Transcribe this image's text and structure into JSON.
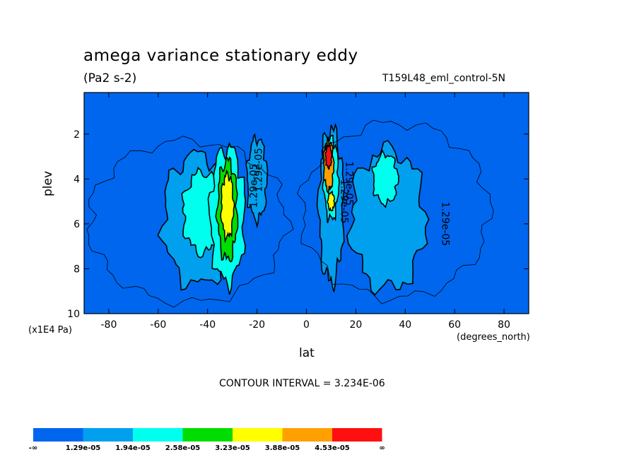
{
  "chart_data": {
    "type": "heatmap",
    "title": "amega variance stationary eddy",
    "units_label": "(Pa2 s-2)",
    "run_label": "T159L48_eml_control-5N",
    "xlabel": "lat",
    "xunits": "(degrees_north)",
    "ylabel": "plev",
    "yunits": "(x1E4 Pa)",
    "xlim": [
      -90,
      90
    ],
    "ylim": [
      10,
      0.15
    ],
    "xticks": [
      "-80",
      "-60",
      "-40",
      "-20",
      "0",
      "20",
      "40",
      "60",
      "80"
    ],
    "yticks": [
      "2",
      "4",
      "6",
      "8",
      "10"
    ],
    "contour_interval": "CONTOUR INTERVAL = 3.234E-06",
    "contour_labels": [
      "1.29e-05",
      "1.29e-05",
      "1.29e-05",
      "1.29e-05",
      "1.29e-05"
    ],
    "colorbar": {
      "labels": [
        "-∞",
        "1.29e-05",
        "1.94e-05",
        "2.58e-05",
        "3.23e-05",
        "3.88e-05",
        "4.53e-05",
        "∞"
      ],
      "colors": [
        "#0066ee",
        "#00a0ee",
        "#00ffee",
        "#00dd00",
        "#ffff00",
        "#ffa000",
        "#ff1010"
      ]
    },
    "blobs": [
      {
        "lat": -44,
        "lev": 5.8,
        "rlat": 14,
        "rlev": 2.9,
        "level": 1
      },
      {
        "lat": -42,
        "lev": 5.5,
        "rlat": 8,
        "rlev": 1.8,
        "level": 2
      },
      {
        "lat": -32,
        "lev": 5.6,
        "rlat": 7,
        "rlev": 3.0,
        "level": 2
      },
      {
        "lat": -32,
        "lev": 5.4,
        "rlat": 4,
        "rlev": 2.2,
        "level": 3
      },
      {
        "lat": -32,
        "lev": 5.2,
        "rlat": 2.5,
        "rlev": 1.4,
        "level": 4
      },
      {
        "lat": -20,
        "lev": 4.0,
        "rlat": 4,
        "rlev": 1.8,
        "level": 1
      },
      {
        "lat": 10,
        "lev": 5.2,
        "rlat": 5,
        "rlev": 3.4,
        "level": 1
      },
      {
        "lat": 10,
        "lev": 4.0,
        "rlat": 3,
        "rlev": 1.8,
        "level": 2
      },
      {
        "lat": 9,
        "lev": 3.4,
        "rlat": 2,
        "rlev": 1.1,
        "level": 5
      },
      {
        "lat": 9,
        "lev": 3.0,
        "rlat": 1.2,
        "rlev": 0.5,
        "level": 6
      },
      {
        "lat": 10,
        "lev": 5.0,
        "rlat": 1.3,
        "rlev": 0.4,
        "level": 4
      },
      {
        "lat": 33,
        "lev": 5.8,
        "rlat": 15,
        "rlev": 3.1,
        "level": 1
      },
      {
        "lat": 32,
        "lev": 4.0,
        "rlat": 5,
        "rlev": 1.1,
        "level": 2
      }
    ]
  }
}
